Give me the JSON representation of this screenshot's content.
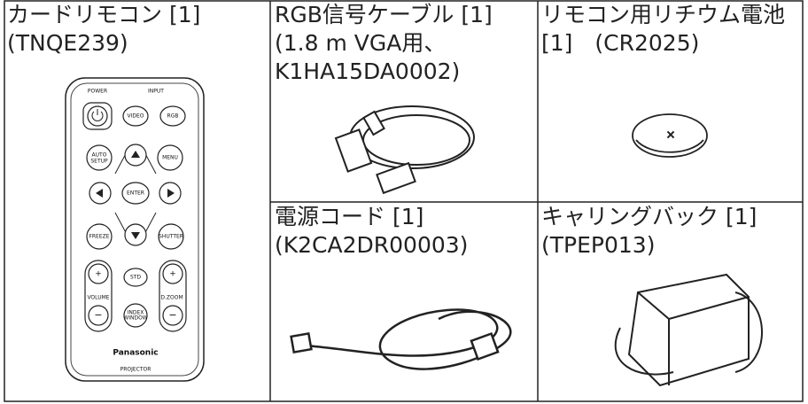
{
  "items": [
    {
      "lines": [
        "カードリモコン [1]",
        "(TNQE239)"
      ]
    },
    {
      "lines": [
        "RGB信号ケーブル [1]",
        "(1.8 m VGA用、",
        "K1HA15DA0002)"
      ]
    },
    {
      "lines": [
        "リモコン用リチウム電池",
        "[1]　(CR2025)"
      ]
    },
    {
      "lines": [
        "電源コード [1]",
        "(K2CA2DR00003)"
      ]
    },
    {
      "lines": [
        "キャリングバック [1]",
        "(TPEP013)"
      ]
    }
  ],
  "remote": {
    "labels": [
      "POWER",
      "INPUT",
      "VIDEO",
      "RGB",
      "AUTO",
      "SETUP",
      "MENU",
      "ENTER",
      "FREEZE",
      "SHUTTER",
      "+",
      "STD",
      "+",
      "VOLUME",
      "D.ZOOM",
      "−",
      "INDEX",
      "WINDOW",
      "−",
      "Panasonic",
      "PROJECTOR"
    ]
  }
}
